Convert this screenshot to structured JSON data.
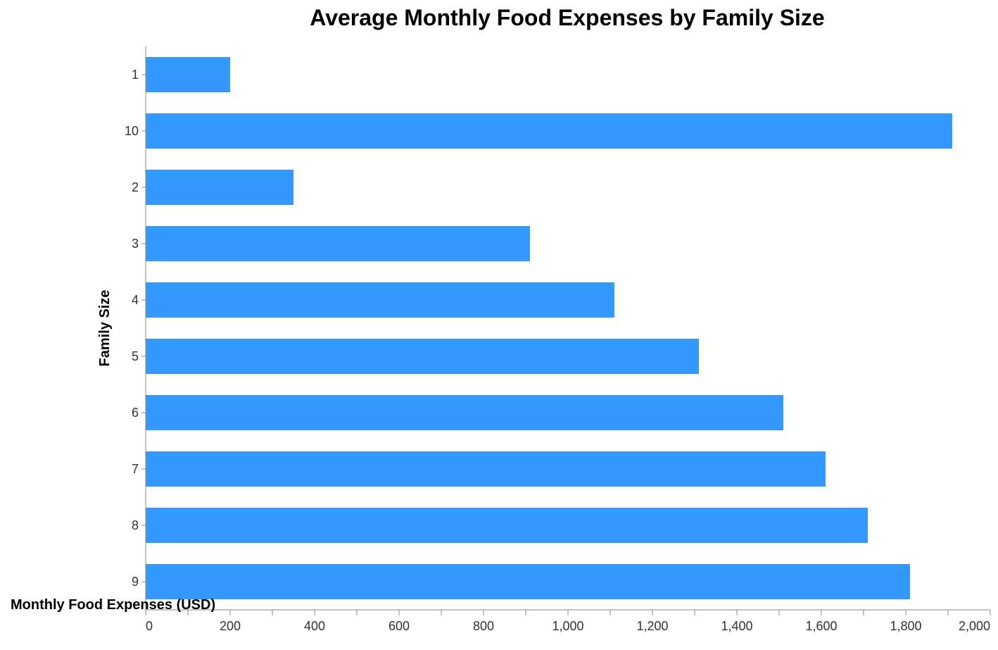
{
  "chart_data": {
    "type": "bar",
    "orientation": "horizontal",
    "title": "Average Monthly Food Expenses by Family Size",
    "xlabel": "Monthly Food Expenses (USD)",
    "ylabel": "Family Size",
    "categories": [
      "1",
      "10",
      "2",
      "3",
      "4",
      "5",
      "6",
      "7",
      "8",
      "9"
    ],
    "values": [
      200,
      1910,
      350,
      910,
      1110,
      1310,
      1510,
      1610,
      1710,
      1810
    ],
    "xlim": [
      0,
      2000
    ],
    "x_ticks": [
      0,
      200,
      400,
      600,
      800,
      1000,
      1200,
      1400,
      1600,
      1800,
      2000
    ],
    "x_tick_labels": [
      "0",
      "200",
      "400",
      "600",
      "800",
      "1,000",
      "1,200",
      "1,400",
      "1,600",
      "1,800",
      "2,000"
    ],
    "grid": false,
    "bar_color": "#3399ff"
  }
}
